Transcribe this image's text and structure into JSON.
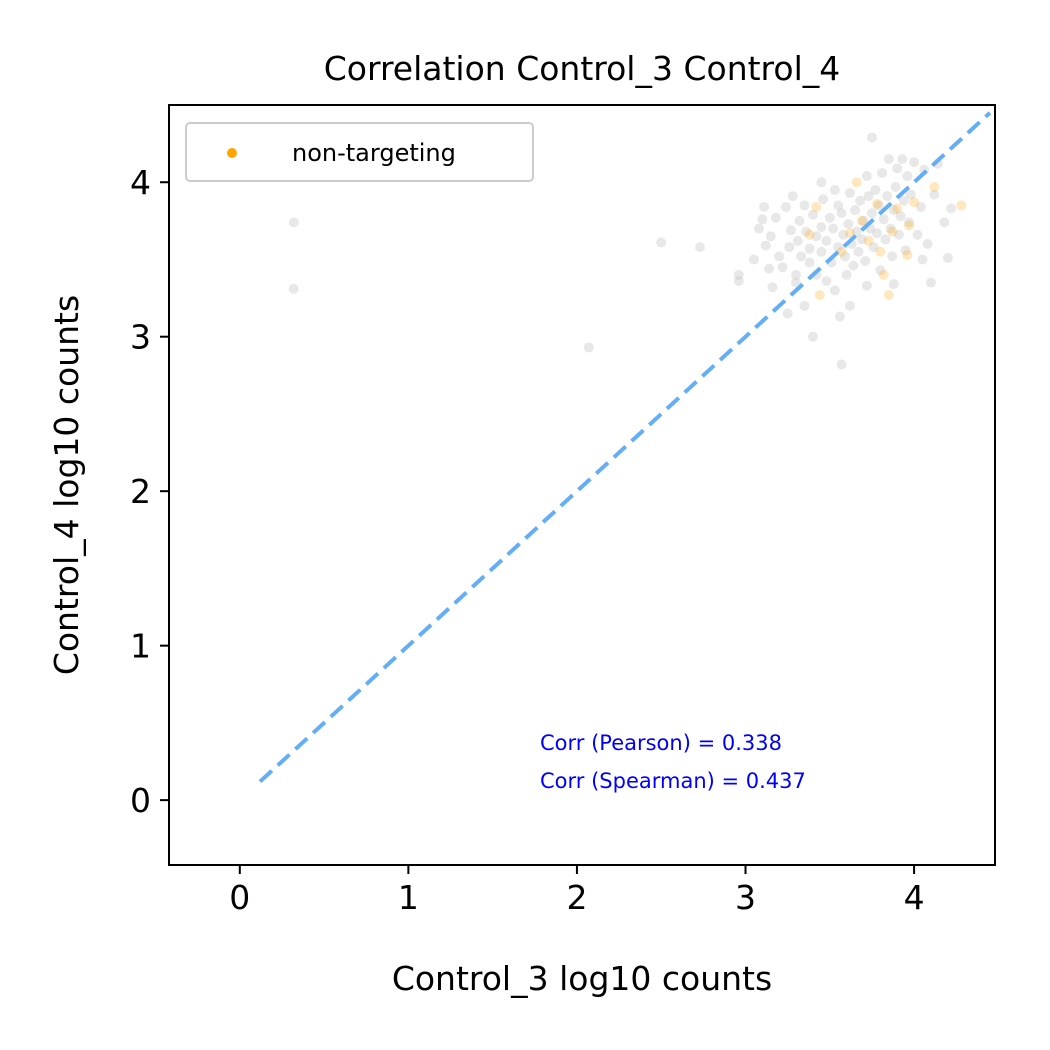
{
  "chart_data": {
    "type": "scatter",
    "title": "Correlation Control_3 Control_4",
    "xlabel": "Control_3 log10 counts",
    "ylabel": "Control_4 log10 counts",
    "xlim": [
      -0.42,
      4.48
    ],
    "ylim": [
      -0.42,
      4.5
    ],
    "xticks": [
      "0",
      "1",
      "2",
      "3",
      "4"
    ],
    "yticks": [
      "0",
      "1",
      "2",
      "3",
      "4"
    ],
    "grid": false,
    "legend": {
      "position": "top-left",
      "entries": [
        "non-targeting"
      ]
    },
    "colors": {
      "targeting": "#bdbdbd",
      "non_targeting": "#ffa500",
      "diagonal": "#63aef5",
      "annotation": "#0000ff"
    },
    "diagonal": {
      "style": "dashed",
      "from": [
        0.12,
        0.12
      ],
      "to": [
        4.45,
        4.45
      ]
    },
    "annotations": [
      "Corr (Pearson) = 0.338",
      "Corr (Spearman) = 0.437"
    ],
    "series": [
      {
        "name": "",
        "color": "#bdbdbd",
        "points": [
          [
            0.32,
            3.74
          ],
          [
            0.32,
            3.31
          ],
          [
            2.5,
            3.61
          ],
          [
            2.73,
            3.58
          ],
          [
            2.07,
            2.93
          ],
          [
            2.96,
            3.4
          ],
          [
            2.96,
            3.36
          ],
          [
            3.08,
            3.7
          ],
          [
            3.1,
            3.76
          ],
          [
            3.11,
            3.84
          ],
          [
            3.12,
            3.59
          ],
          [
            3.15,
            3.65
          ],
          [
            3.16,
            3.32
          ],
          [
            3.18,
            3.77
          ],
          [
            3.2,
            3.52
          ],
          [
            3.22,
            3.45
          ],
          [
            3.24,
            3.84
          ],
          [
            3.26,
            3.58
          ],
          [
            3.27,
            3.69
          ],
          [
            3.28,
            3.91
          ],
          [
            3.3,
            3.4
          ],
          [
            3.31,
            3.62
          ],
          [
            3.32,
            3.75
          ],
          [
            3.33,
            3.52
          ],
          [
            3.35,
            3.2
          ],
          [
            3.35,
            3.85
          ],
          [
            3.36,
            3.68
          ],
          [
            3.38,
            3.48
          ],
          [
            3.38,
            3.57
          ],
          [
            3.4,
            3.0
          ],
          [
            3.4,
            3.79
          ],
          [
            3.42,
            3.65
          ],
          [
            3.42,
            3.4
          ],
          [
            3.45,
            3.71
          ],
          [
            3.45,
            3.55
          ],
          [
            3.46,
            3.89
          ],
          [
            3.48,
            3.36
          ],
          [
            3.48,
            3.62
          ],
          [
            3.5,
            3.77
          ],
          [
            3.51,
            3.48
          ],
          [
            3.52,
            3.7
          ],
          [
            3.53,
            3.3
          ],
          [
            3.55,
            3.85
          ],
          [
            3.55,
            3.58
          ],
          [
            3.56,
            3.13
          ],
          [
            3.57,
            3.8
          ],
          [
            3.57,
            2.82
          ],
          [
            3.58,
            3.66
          ],
          [
            3.59,
            3.52
          ],
          [
            3.6,
            3.4
          ],
          [
            3.61,
            3.73
          ],
          [
            3.62,
            3.93
          ],
          [
            3.63,
            3.6
          ],
          [
            3.64,
            3.46
          ],
          [
            3.65,
            3.82
          ],
          [
            3.66,
            3.68
          ],
          [
            3.67,
            3.55
          ],
          [
            3.68,
            3.88
          ],
          [
            3.69,
            3.63
          ],
          [
            3.7,
            3.75
          ],
          [
            3.71,
            3.49
          ],
          [
            3.72,
            4.04
          ],
          [
            3.73,
            3.91
          ],
          [
            3.74,
            3.7
          ],
          [
            3.75,
            3.8
          ],
          [
            3.75,
            4.29
          ],
          [
            3.76,
            3.58
          ],
          [
            3.77,
            3.95
          ],
          [
            3.78,
            3.67
          ],
          [
            3.79,
            3.85
          ],
          [
            3.8,
            3.43
          ],
          [
            3.81,
            4.06
          ],
          [
            3.82,
            3.76
          ],
          [
            3.83,
            3.63
          ],
          [
            3.84,
            3.91
          ],
          [
            3.85,
            4.15
          ],
          [
            3.86,
            3.7
          ],
          [
            3.87,
            3.52
          ],
          [
            3.88,
            3.82
          ],
          [
            3.89,
            3.97
          ],
          [
            3.9,
            4.09
          ],
          [
            3.91,
            3.66
          ],
          [
            3.92,
            3.78
          ],
          [
            3.93,
            4.15
          ],
          [
            3.94,
            3.88
          ],
          [
            3.95,
            3.56
          ],
          [
            3.96,
            4.04
          ],
          [
            3.97,
            3.74
          ],
          [
            3.98,
            3.92
          ],
          [
            4.0,
            4.13
          ],
          [
            4.02,
            3.66
          ],
          [
            4.04,
            3.84
          ],
          [
            4.05,
            3.5
          ],
          [
            4.06,
            4.08
          ],
          [
            4.08,
            3.6
          ],
          [
            4.1,
            3.35
          ],
          [
            4.12,
            3.92
          ],
          [
            4.14,
            4.12
          ],
          [
            4.18,
            3.74
          ],
          [
            4.2,
            3.51
          ],
          [
            4.22,
            3.83
          ],
          [
            3.25,
            3.15
          ],
          [
            3.3,
            3.35
          ],
          [
            3.14,
            3.44
          ],
          [
            3.62,
            3.2
          ],
          [
            3.88,
            3.34
          ],
          [
            3.72,
            3.33
          ],
          [
            3.05,
            3.5
          ],
          [
            3.45,
            4.0
          ],
          [
            3.53,
            3.95
          ]
        ]
      },
      {
        "name": "non-targeting",
        "color": "#ffa500",
        "points": [
          [
            3.42,
            3.84
          ],
          [
            3.38,
            3.66
          ],
          [
            3.44,
            3.27
          ],
          [
            3.57,
            3.55
          ],
          [
            3.62,
            3.67
          ],
          [
            3.66,
            4.0
          ],
          [
            3.73,
            3.62
          ],
          [
            3.78,
            3.86
          ],
          [
            3.82,
            3.4
          ],
          [
            3.85,
            3.27
          ],
          [
            3.87,
            3.68
          ],
          [
            3.9,
            3.83
          ],
          [
            3.96,
            3.53
          ],
          [
            3.97,
            3.72
          ],
          [
            4.0,
            3.87
          ],
          [
            4.12,
            3.97
          ],
          [
            4.28,
            3.85
          ],
          [
            3.69,
            3.75
          ],
          [
            3.8,
            3.55
          ]
        ]
      }
    ]
  }
}
